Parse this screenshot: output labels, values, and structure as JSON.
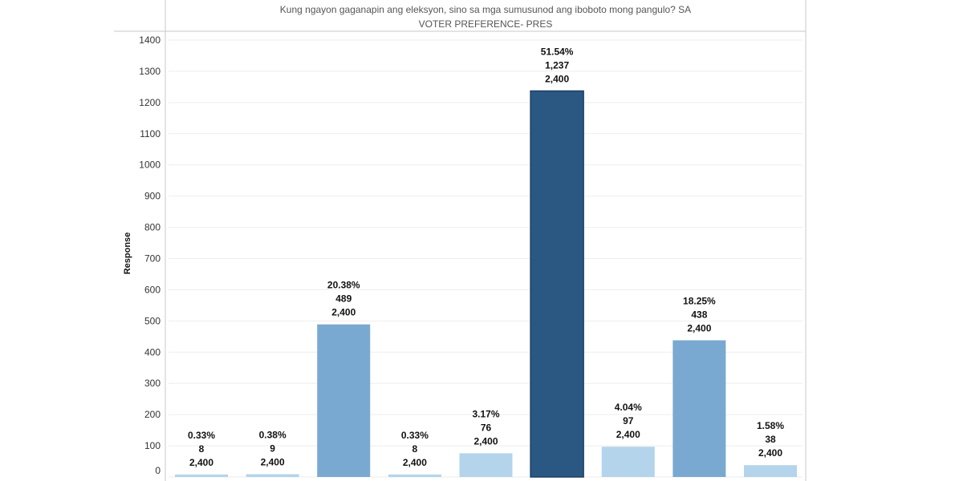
{
  "chart_data": {
    "type": "bar",
    "title": "Kung ngayon gaganapin ang eleksyon, sino sa mga sumusunod ang iboboto mong pangulo? SA",
    "subtitle": "VOTER PREFERENCE- PRES",
    "xlabel": "",
    "ylabel": "Response",
    "ylim": [
      0,
      1400
    ],
    "yticks": [
      0,
      100,
      200,
      300,
      400,
      500,
      600,
      700,
      800,
      900,
      1000,
      1100,
      1200,
      1300,
      1400
    ],
    "grid": true,
    "values": [
      8,
      9,
      489,
      8,
      76,
      1237,
      97,
      438,
      38
    ],
    "percent_labels": [
      "0.33%",
      "0.38%",
      "20.38%",
      "0.33%",
      "3.17%",
      "51.54%",
      "4.04%",
      "18.25%",
      "1.58%"
    ],
    "count_labels": [
      "8",
      "9",
      "489",
      "8",
      "76",
      "1,237",
      "97",
      "438",
      "38"
    ],
    "total_labels": [
      "2,400",
      "2,400",
      "2,400",
      "2,400",
      "2,400",
      "2,400",
      "2,400",
      "2,400",
      "2,400"
    ],
    "colors": {
      "low": "#b4d4ec",
      "mid": "#79a9d0",
      "high": "#2b5883",
      "high_border": "#1d3f61"
    }
  }
}
